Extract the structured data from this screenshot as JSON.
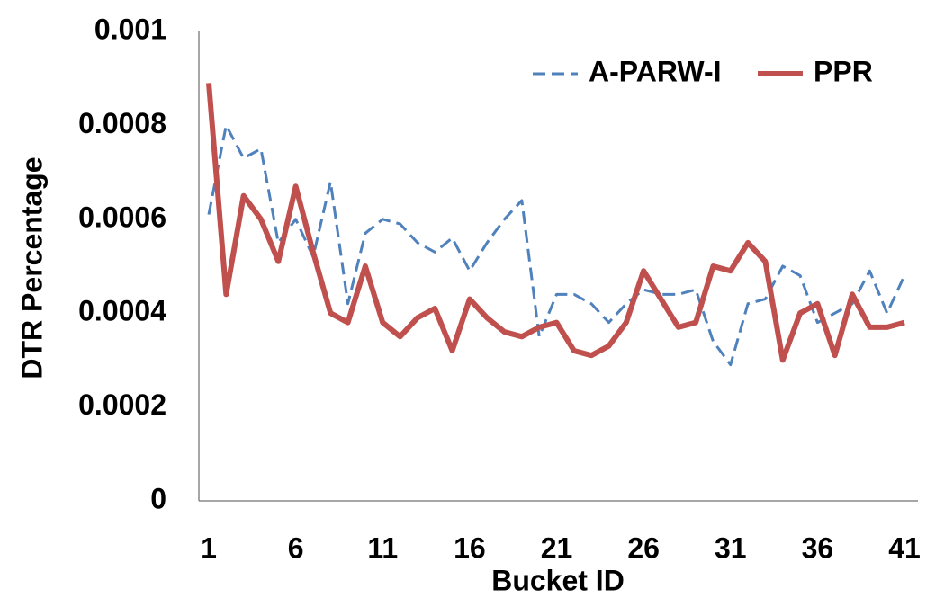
{
  "chart_data": {
    "type": "line",
    "x_label": "Bucket ID",
    "y_label": "DTR Percentage",
    "categories": [
      "1",
      null,
      null,
      null,
      null,
      "6",
      null,
      null,
      null,
      null,
      "11",
      null,
      null,
      null,
      null,
      "16",
      null,
      null,
      null,
      null,
      "21",
      null,
      null,
      null,
      null,
      "26",
      null,
      null,
      null,
      null,
      "31",
      null,
      null,
      null,
      null,
      "36",
      null,
      null,
      null,
      null,
      "41"
    ],
    "series": [
      {
        "name": "A-PARW-I",
        "color": "#4f81bd",
        "dashed": true,
        "values": [
          0.00061,
          0.0008,
          0.00073,
          0.00075,
          0.00055,
          0.0006,
          0.00052,
          0.00068,
          0.00042,
          0.00057,
          0.0006,
          0.00059,
          0.00055,
          0.00053,
          0.00056,
          0.00049,
          0.00055,
          0.0006,
          0.00064,
          0.00035,
          0.00044,
          0.00044,
          0.00042,
          0.00038,
          0.00042,
          0.00045,
          0.00044,
          0.00044,
          0.00045,
          0.00034,
          0.00029,
          0.00042,
          0.00043,
          0.0005,
          0.00048,
          0.00038,
          0.0004,
          0.00042,
          0.00049,
          0.0004,
          0.00048
        ]
      },
      {
        "name": "PPR",
        "color": "#c0504d",
        "dashed": false,
        "values": [
          0.00089,
          0.00044,
          0.00065,
          0.0006,
          0.00051,
          0.00067,
          0.00053,
          0.0004,
          0.00038,
          0.0005,
          0.00038,
          0.00035,
          0.00039,
          0.00041,
          0.00032,
          0.00043,
          0.00039,
          0.00036,
          0.00035,
          0.00037,
          0.00038,
          0.00032,
          0.00031,
          0.00033,
          0.00038,
          0.00049,
          0.00043,
          0.00037,
          0.00038,
          0.0005,
          0.00049,
          0.00055,
          0.00051,
          0.0003,
          0.0004,
          0.00042,
          0.00031,
          0.00044,
          0.00037,
          0.00037,
          0.00038
        ]
      }
    ],
    "ylim": [
      0,
      0.001
    ],
    "yticks": [
      0,
      0.0002,
      0.0004,
      0.0006,
      0.0008,
      0.001
    ],
    "grid": false,
    "legend": "upper right"
  }
}
